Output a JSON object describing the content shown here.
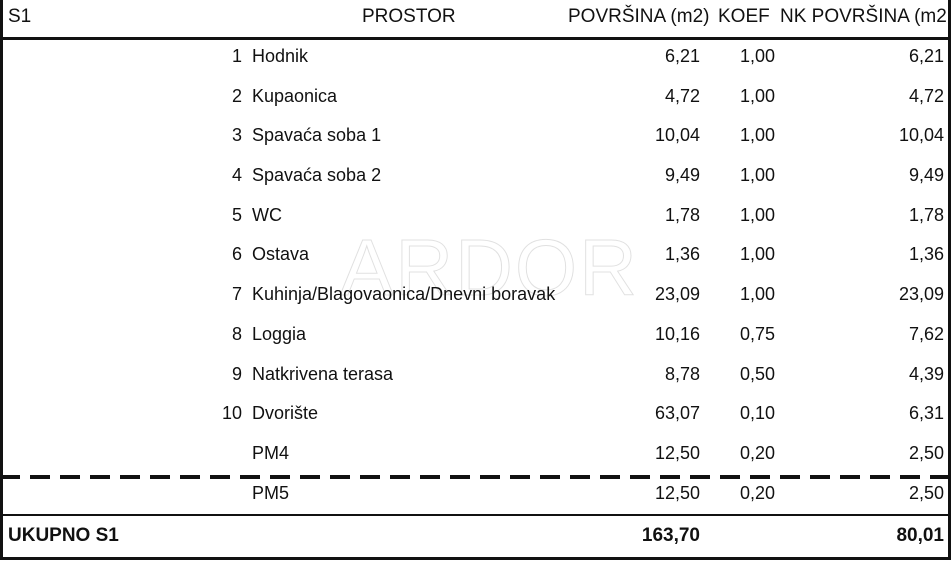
{
  "header": {
    "s1": "S1",
    "prostor": "PROSTOR",
    "povrsina": "POVRŠINA (m2)",
    "koef": "KOEF",
    "nk_povrsina": "NK POVRŠINA (m2"
  },
  "rows": [
    {
      "num": "1",
      "name": "Hodnik",
      "area": "6,21",
      "koef": "1,00",
      "nk": "6,21"
    },
    {
      "num": "2",
      "name": "Kupaonica",
      "area": "4,72",
      "koef": "1,00",
      "nk": "4,72"
    },
    {
      "num": "3",
      "name": "Spavaća soba 1",
      "area": "10,04",
      "koef": "1,00",
      "nk": "10,04"
    },
    {
      "num": "4",
      "name": "Spavaća soba 2",
      "area": "9,49",
      "koef": "1,00",
      "nk": "9,49"
    },
    {
      "num": "5",
      "name": "WC",
      "area": "1,78",
      "koef": "1,00",
      "nk": "1,78"
    },
    {
      "num": "6",
      "name": "Ostava",
      "area": "1,36",
      "koef": "1,00",
      "nk": "1,36"
    },
    {
      "num": "7",
      "name": "Kuhinja/Blagovaonica/Dnevni boravak",
      "area": "23,09",
      "koef": "1,00",
      "nk": "23,09"
    },
    {
      "num": "8",
      "name": "Loggia",
      "area": "10,16",
      "koef": "0,75",
      "nk": "7,62"
    },
    {
      "num": "9",
      "name": "Natkrivena terasa",
      "area": "8,78",
      "koef": "0,50",
      "nk": "4,39"
    },
    {
      "num": "10",
      "name": "Dvorište",
      "area": "63,07",
      "koef": "0,10",
      "nk": "6,31"
    },
    {
      "num": "",
      "name": "PM4",
      "area": "12,50",
      "koef": "0,20",
      "nk": "2,50"
    },
    {
      "num": "",
      "name": "PM5",
      "area": "12,50",
      "koef": "0,20",
      "nk": "2,50"
    }
  ],
  "total": {
    "label": "UKUPNO S1",
    "area": "163,70",
    "nk": "80,01"
  },
  "watermark": {
    "logo": "ARDOR"
  }
}
